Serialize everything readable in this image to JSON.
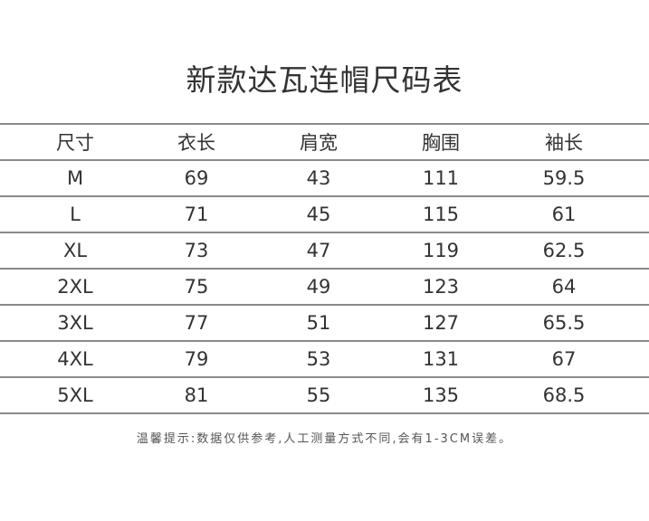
{
  "title": "新款达瓦连帽尺码表",
  "table": {
    "headers": [
      "尺寸",
      "衣长",
      "肩宽",
      "胸围",
      "袖长"
    ],
    "rows": [
      [
        "M",
        "69",
        "43",
        "111",
        "59.5"
      ],
      [
        "L",
        "71",
        "45",
        "115",
        "61"
      ],
      [
        "XL",
        "73",
        "47",
        "119",
        "62.5"
      ],
      [
        "2XL",
        "75",
        "49",
        "123",
        "64"
      ],
      [
        "3XL",
        "77",
        "51",
        "127",
        "65.5"
      ],
      [
        "4XL",
        "79",
        "53",
        "131",
        "67"
      ],
      [
        "5XL",
        "81",
        "55",
        "135",
        "68.5"
      ]
    ]
  },
  "note": "温馨提示:数据仅供参考,人工测量方式不同,会有1-3CM误差。"
}
